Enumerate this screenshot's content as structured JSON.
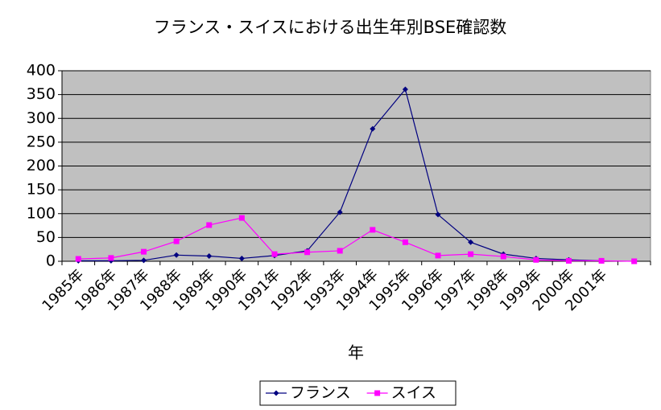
{
  "chart_data": {
    "type": "line",
    "title": "フランス・スイスにおける出生年別BSE確認数",
    "x_label": "年",
    "categories": [
      "1985年",
      "1986年",
      "1987年",
      "1988年",
      "1989年",
      "1990年",
      "1991年",
      "1992年",
      "1993年",
      "1994年",
      "1995年",
      "1996年",
      "1997年",
      "1998年",
      "1999年",
      "2000年",
      "2001年",
      null
    ],
    "series": [
      {
        "name": "フランス",
        "color": "#000080",
        "marker": "diamond",
        "values": [
          1,
          1,
          2,
          13,
          11,
          6,
          12,
          22,
          103,
          278,
          361,
          98,
          40,
          15,
          6,
          3,
          1,
          null
        ]
      },
      {
        "name": "スイス",
        "color": "#ff00ff",
        "marker": "square",
        "values": [
          5,
          7,
          20,
          42,
          76,
          91,
          15,
          19,
          22,
          66,
          40,
          12,
          15,
          10,
          3,
          1,
          1,
          0
        ]
      }
    ],
    "ylim": [
      0,
      400
    ],
    "yticks": [
      0,
      50,
      100,
      150,
      200,
      250,
      300,
      350,
      400
    ],
    "grid": true,
    "legend": "bottom"
  }
}
